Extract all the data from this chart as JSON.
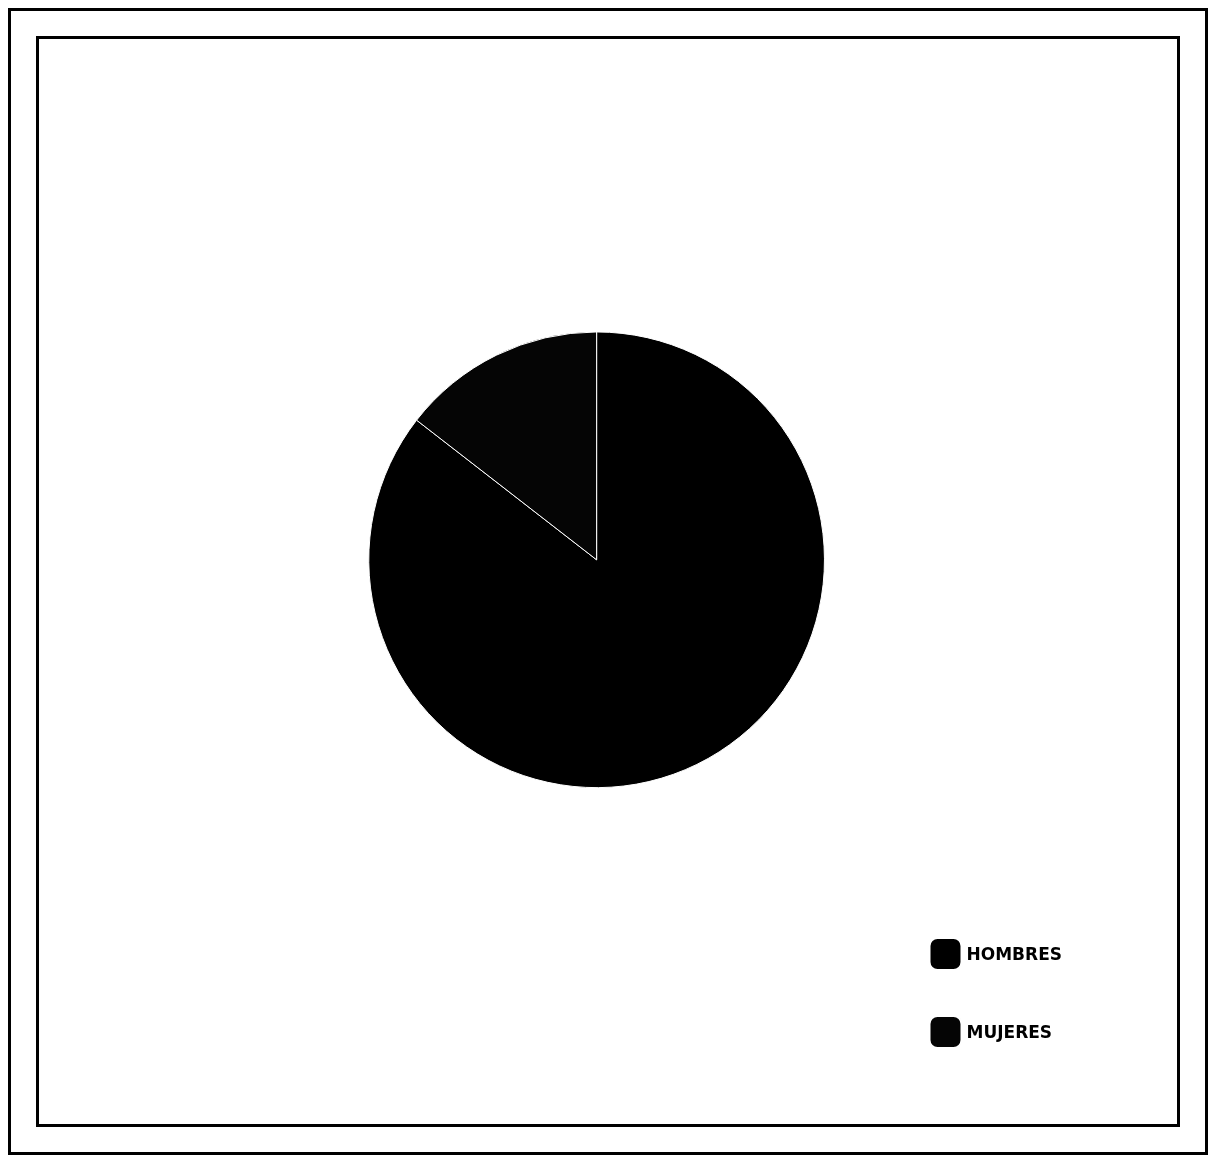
{
  "chart_data": {
    "type": "pie",
    "categories": [
      "HOMBRES",
      "MUJERES"
    ],
    "values": [
      85.5,
      14.5
    ],
    "colors": [
      "#000000",
      "#050505"
    ],
    "legend": "bottom right"
  }
}
